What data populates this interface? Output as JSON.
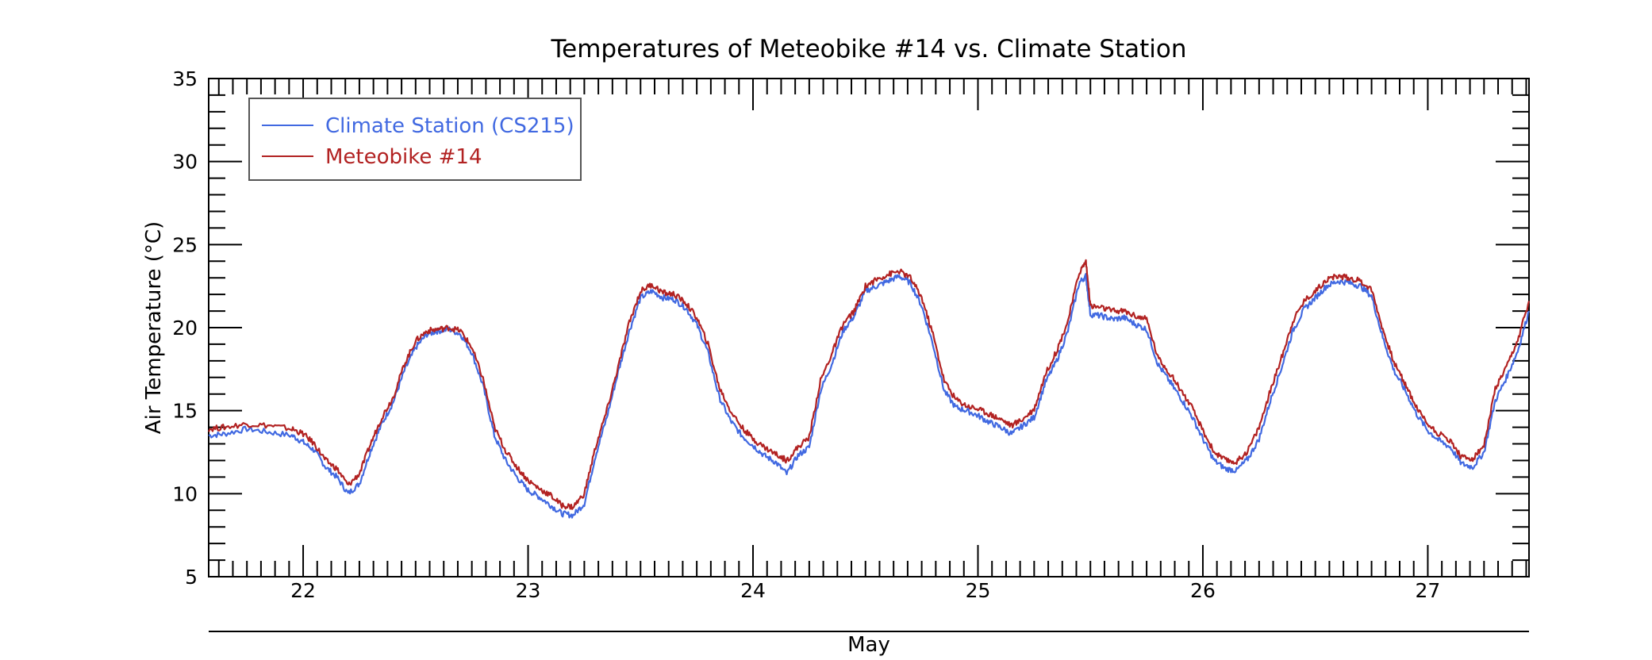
{
  "chart_data": {
    "type": "line",
    "title": "Temperatures of Meteobike #14 vs. Climate Station",
    "xlabel": "May",
    "ylabel": "Air Temperature (°C)",
    "xlim": [
      21.58,
      27.45
    ],
    "ylim": [
      5,
      35
    ],
    "x_ticks": [
      22,
      23,
      24,
      25,
      26,
      27
    ],
    "x_tick_labels": [
      "22",
      "23",
      "24",
      "25",
      "26",
      "27"
    ],
    "y_ticks": [
      5,
      10,
      15,
      20,
      25,
      30,
      35
    ],
    "y_tick_labels": [
      "5",
      "10",
      "15",
      "20",
      "25",
      "30",
      "35"
    ],
    "grid": false,
    "legend": "top-left",
    "series": [
      {
        "name": "Climate Station (CS215)",
        "color": "#4169e1",
        "points": [
          [
            21.58,
            13.5
          ],
          [
            21.65,
            13.6
          ],
          [
            21.75,
            13.9
          ],
          [
            21.85,
            13.7
          ],
          [
            21.95,
            13.5
          ],
          [
            22.0,
            13.1
          ],
          [
            22.05,
            12.6
          ],
          [
            22.1,
            11.6
          ],
          [
            22.15,
            11.0
          ],
          [
            22.2,
            10.0
          ],
          [
            22.25,
            10.6
          ],
          [
            22.3,
            12.6
          ],
          [
            22.35,
            14.2
          ],
          [
            22.4,
            15.5
          ],
          [
            22.45,
            17.4
          ],
          [
            22.5,
            18.8
          ],
          [
            22.55,
            19.6
          ],
          [
            22.6,
            19.8
          ],
          [
            22.65,
            19.9
          ],
          [
            22.7,
            19.6
          ],
          [
            22.75,
            18.5
          ],
          [
            22.8,
            16.5
          ],
          [
            22.85,
            13.5
          ],
          [
            22.9,
            12.0
          ],
          [
            22.95,
            11.0
          ],
          [
            23.0,
            10.2
          ],
          [
            23.05,
            9.8
          ],
          [
            23.1,
            9.3
          ],
          [
            23.15,
            8.8
          ],
          [
            23.2,
            8.7
          ],
          [
            23.25,
            9.4
          ],
          [
            23.3,
            12.3
          ],
          [
            23.35,
            14.6
          ],
          [
            23.4,
            17.3
          ],
          [
            23.45,
            19.8
          ],
          [
            23.5,
            21.8
          ],
          [
            23.55,
            22.2
          ],
          [
            23.6,
            21.8
          ],
          [
            23.65,
            21.7
          ],
          [
            23.7,
            21.2
          ],
          [
            23.75,
            20.2
          ],
          [
            23.8,
            18.5
          ],
          [
            23.85,
            15.8
          ],
          [
            23.9,
            14.4
          ],
          [
            23.95,
            13.5
          ],
          [
            24.0,
            12.9
          ],
          [
            24.05,
            12.3
          ],
          [
            24.1,
            11.9
          ],
          [
            24.15,
            11.2
          ],
          [
            24.2,
            12.3
          ],
          [
            24.25,
            12.8
          ],
          [
            24.3,
            16.2
          ],
          [
            24.35,
            17.8
          ],
          [
            24.4,
            19.8
          ],
          [
            24.45,
            20.7
          ],
          [
            24.5,
            22.2
          ],
          [
            24.55,
            22.5
          ],
          [
            24.6,
            22.8
          ],
          [
            24.65,
            23.1
          ],
          [
            24.7,
            22.7
          ],
          [
            24.75,
            21.3
          ],
          [
            24.8,
            19.0
          ],
          [
            24.85,
            16.2
          ],
          [
            24.9,
            15.2
          ],
          [
            24.95,
            15.0
          ],
          [
            25.0,
            14.7
          ],
          [
            25.05,
            14.3
          ],
          [
            25.1,
            14.0
          ],
          [
            25.15,
            13.6
          ],
          [
            25.2,
            14.1
          ],
          [
            25.25,
            14.6
          ],
          [
            25.3,
            16.7
          ],
          [
            25.35,
            18.0
          ],
          [
            25.4,
            19.8
          ],
          [
            25.45,
            22.7
          ],
          [
            25.48,
            23.1
          ],
          [
            25.5,
            20.8
          ],
          [
            25.55,
            20.7
          ],
          [
            25.6,
            20.5
          ],
          [
            25.65,
            20.6
          ],
          [
            25.7,
            20.2
          ],
          [
            25.75,
            19.9
          ],
          [
            25.8,
            17.8
          ],
          [
            25.85,
            16.8
          ],
          [
            25.9,
            15.8
          ],
          [
            25.95,
            14.7
          ],
          [
            26.0,
            13.3
          ],
          [
            26.05,
            12.0
          ],
          [
            26.1,
            11.5
          ],
          [
            26.15,
            11.4
          ],
          [
            26.2,
            12.1
          ],
          [
            26.25,
            13.3
          ],
          [
            26.3,
            15.6
          ],
          [
            26.35,
            17.6
          ],
          [
            26.4,
            19.8
          ],
          [
            26.45,
            21.1
          ],
          [
            26.5,
            21.8
          ],
          [
            26.55,
            22.5
          ],
          [
            26.6,
            22.8
          ],
          [
            26.65,
            22.7
          ],
          [
            26.7,
            22.5
          ],
          [
            26.75,
            21.9
          ],
          [
            26.8,
            19.4
          ],
          [
            26.85,
            17.4
          ],
          [
            26.9,
            16.2
          ],
          [
            26.95,
            14.8
          ],
          [
            27.0,
            13.8
          ],
          [
            27.05,
            13.2
          ],
          [
            27.1,
            12.8
          ],
          [
            27.15,
            11.8
          ],
          [
            27.2,
            11.6
          ],
          [
            27.25,
            12.5
          ],
          [
            27.3,
            15.6
          ],
          [
            27.35,
            17.0
          ],
          [
            27.4,
            18.6
          ],
          [
            27.45,
            21.0
          ]
        ]
      },
      {
        "name": "Meteobike #14",
        "color": "#b22222",
        "points": [
          [
            21.58,
            13.9
          ],
          [
            21.65,
            14.0
          ],
          [
            21.75,
            14.2
          ],
          [
            21.85,
            14.1
          ],
          [
            21.95,
            13.9
          ],
          [
            22.0,
            13.6
          ],
          [
            22.05,
            13.0
          ],
          [
            22.1,
            12.0
          ],
          [
            22.15,
            11.5
          ],
          [
            22.2,
            10.5
          ],
          [
            22.25,
            11.2
          ],
          [
            22.3,
            13.0
          ],
          [
            22.35,
            14.6
          ],
          [
            22.4,
            15.8
          ],
          [
            22.45,
            17.8
          ],
          [
            22.5,
            19.2
          ],
          [
            22.55,
            19.8
          ],
          [
            22.6,
            19.9
          ],
          [
            22.65,
            20.0
          ],
          [
            22.7,
            19.8
          ],
          [
            22.75,
            18.8
          ],
          [
            22.8,
            16.9
          ],
          [
            22.85,
            14.0
          ],
          [
            22.9,
            12.6
          ],
          [
            22.95,
            11.6
          ],
          [
            23.0,
            10.8
          ],
          [
            23.05,
            10.3
          ],
          [
            23.1,
            9.9
          ],
          [
            23.15,
            9.3
          ],
          [
            23.2,
            9.2
          ],
          [
            23.25,
            10.0
          ],
          [
            23.3,
            12.8
          ],
          [
            23.35,
            15.0
          ],
          [
            23.4,
            17.6
          ],
          [
            23.45,
            20.3
          ],
          [
            23.5,
            22.2
          ],
          [
            23.55,
            22.6
          ],
          [
            23.6,
            22.1
          ],
          [
            23.65,
            22.0
          ],
          [
            23.7,
            21.5
          ],
          [
            23.75,
            20.6
          ],
          [
            23.8,
            19.0
          ],
          [
            23.85,
            16.4
          ],
          [
            23.9,
            15.0
          ],
          [
            23.95,
            14.0
          ],
          [
            24.0,
            13.3
          ],
          [
            24.05,
            12.8
          ],
          [
            24.1,
            12.4
          ],
          [
            24.15,
            12.0
          ],
          [
            24.2,
            12.8
          ],
          [
            24.25,
            13.4
          ],
          [
            24.3,
            16.8
          ],
          [
            24.35,
            18.4
          ],
          [
            24.4,
            20.2
          ],
          [
            24.45,
            21.0
          ],
          [
            24.5,
            22.5
          ],
          [
            24.55,
            22.9
          ],
          [
            24.6,
            23.2
          ],
          [
            24.65,
            23.4
          ],
          [
            24.7,
            23.0
          ],
          [
            24.75,
            21.8
          ],
          [
            24.8,
            19.6
          ],
          [
            24.85,
            16.8
          ],
          [
            24.9,
            15.7
          ],
          [
            24.95,
            15.3
          ],
          [
            25.0,
            15.1
          ],
          [
            25.05,
            14.8
          ],
          [
            25.1,
            14.5
          ],
          [
            25.15,
            14.1
          ],
          [
            25.2,
            14.5
          ],
          [
            25.25,
            15.1
          ],
          [
            25.3,
            17.2
          ],
          [
            25.35,
            18.6
          ],
          [
            25.4,
            20.4
          ],
          [
            25.45,
            23.3
          ],
          [
            25.48,
            24.0
          ],
          [
            25.5,
            21.3
          ],
          [
            25.55,
            21.2
          ],
          [
            25.6,
            21.0
          ],
          [
            25.65,
            21.0
          ],
          [
            25.7,
            20.7
          ],
          [
            25.75,
            20.5
          ],
          [
            25.8,
            18.2
          ],
          [
            25.85,
            17.3
          ],
          [
            25.9,
            16.3
          ],
          [
            25.95,
            15.2
          ],
          [
            26.0,
            13.8
          ],
          [
            26.05,
            12.5
          ],
          [
            26.1,
            12.0
          ],
          [
            26.15,
            11.9
          ],
          [
            26.2,
            12.6
          ],
          [
            26.25,
            14.0
          ],
          [
            26.3,
            16.2
          ],
          [
            26.35,
            18.2
          ],
          [
            26.4,
            20.4
          ],
          [
            26.45,
            21.6
          ],
          [
            26.5,
            22.2
          ],
          [
            26.55,
            22.9
          ],
          [
            26.6,
            23.1
          ],
          [
            26.65,
            23.0
          ],
          [
            26.7,
            22.8
          ],
          [
            26.75,
            22.3
          ],
          [
            26.8,
            19.9
          ],
          [
            26.85,
            17.9
          ],
          [
            26.9,
            16.6
          ],
          [
            26.95,
            15.2
          ],
          [
            27.0,
            14.2
          ],
          [
            27.05,
            13.6
          ],
          [
            27.1,
            13.2
          ],
          [
            27.15,
            12.2
          ],
          [
            27.2,
            12.1
          ],
          [
            27.25,
            12.9
          ],
          [
            27.3,
            16.3
          ],
          [
            27.35,
            17.6
          ],
          [
            27.4,
            19.2
          ],
          [
            27.45,
            21.6
          ]
        ]
      }
    ]
  }
}
